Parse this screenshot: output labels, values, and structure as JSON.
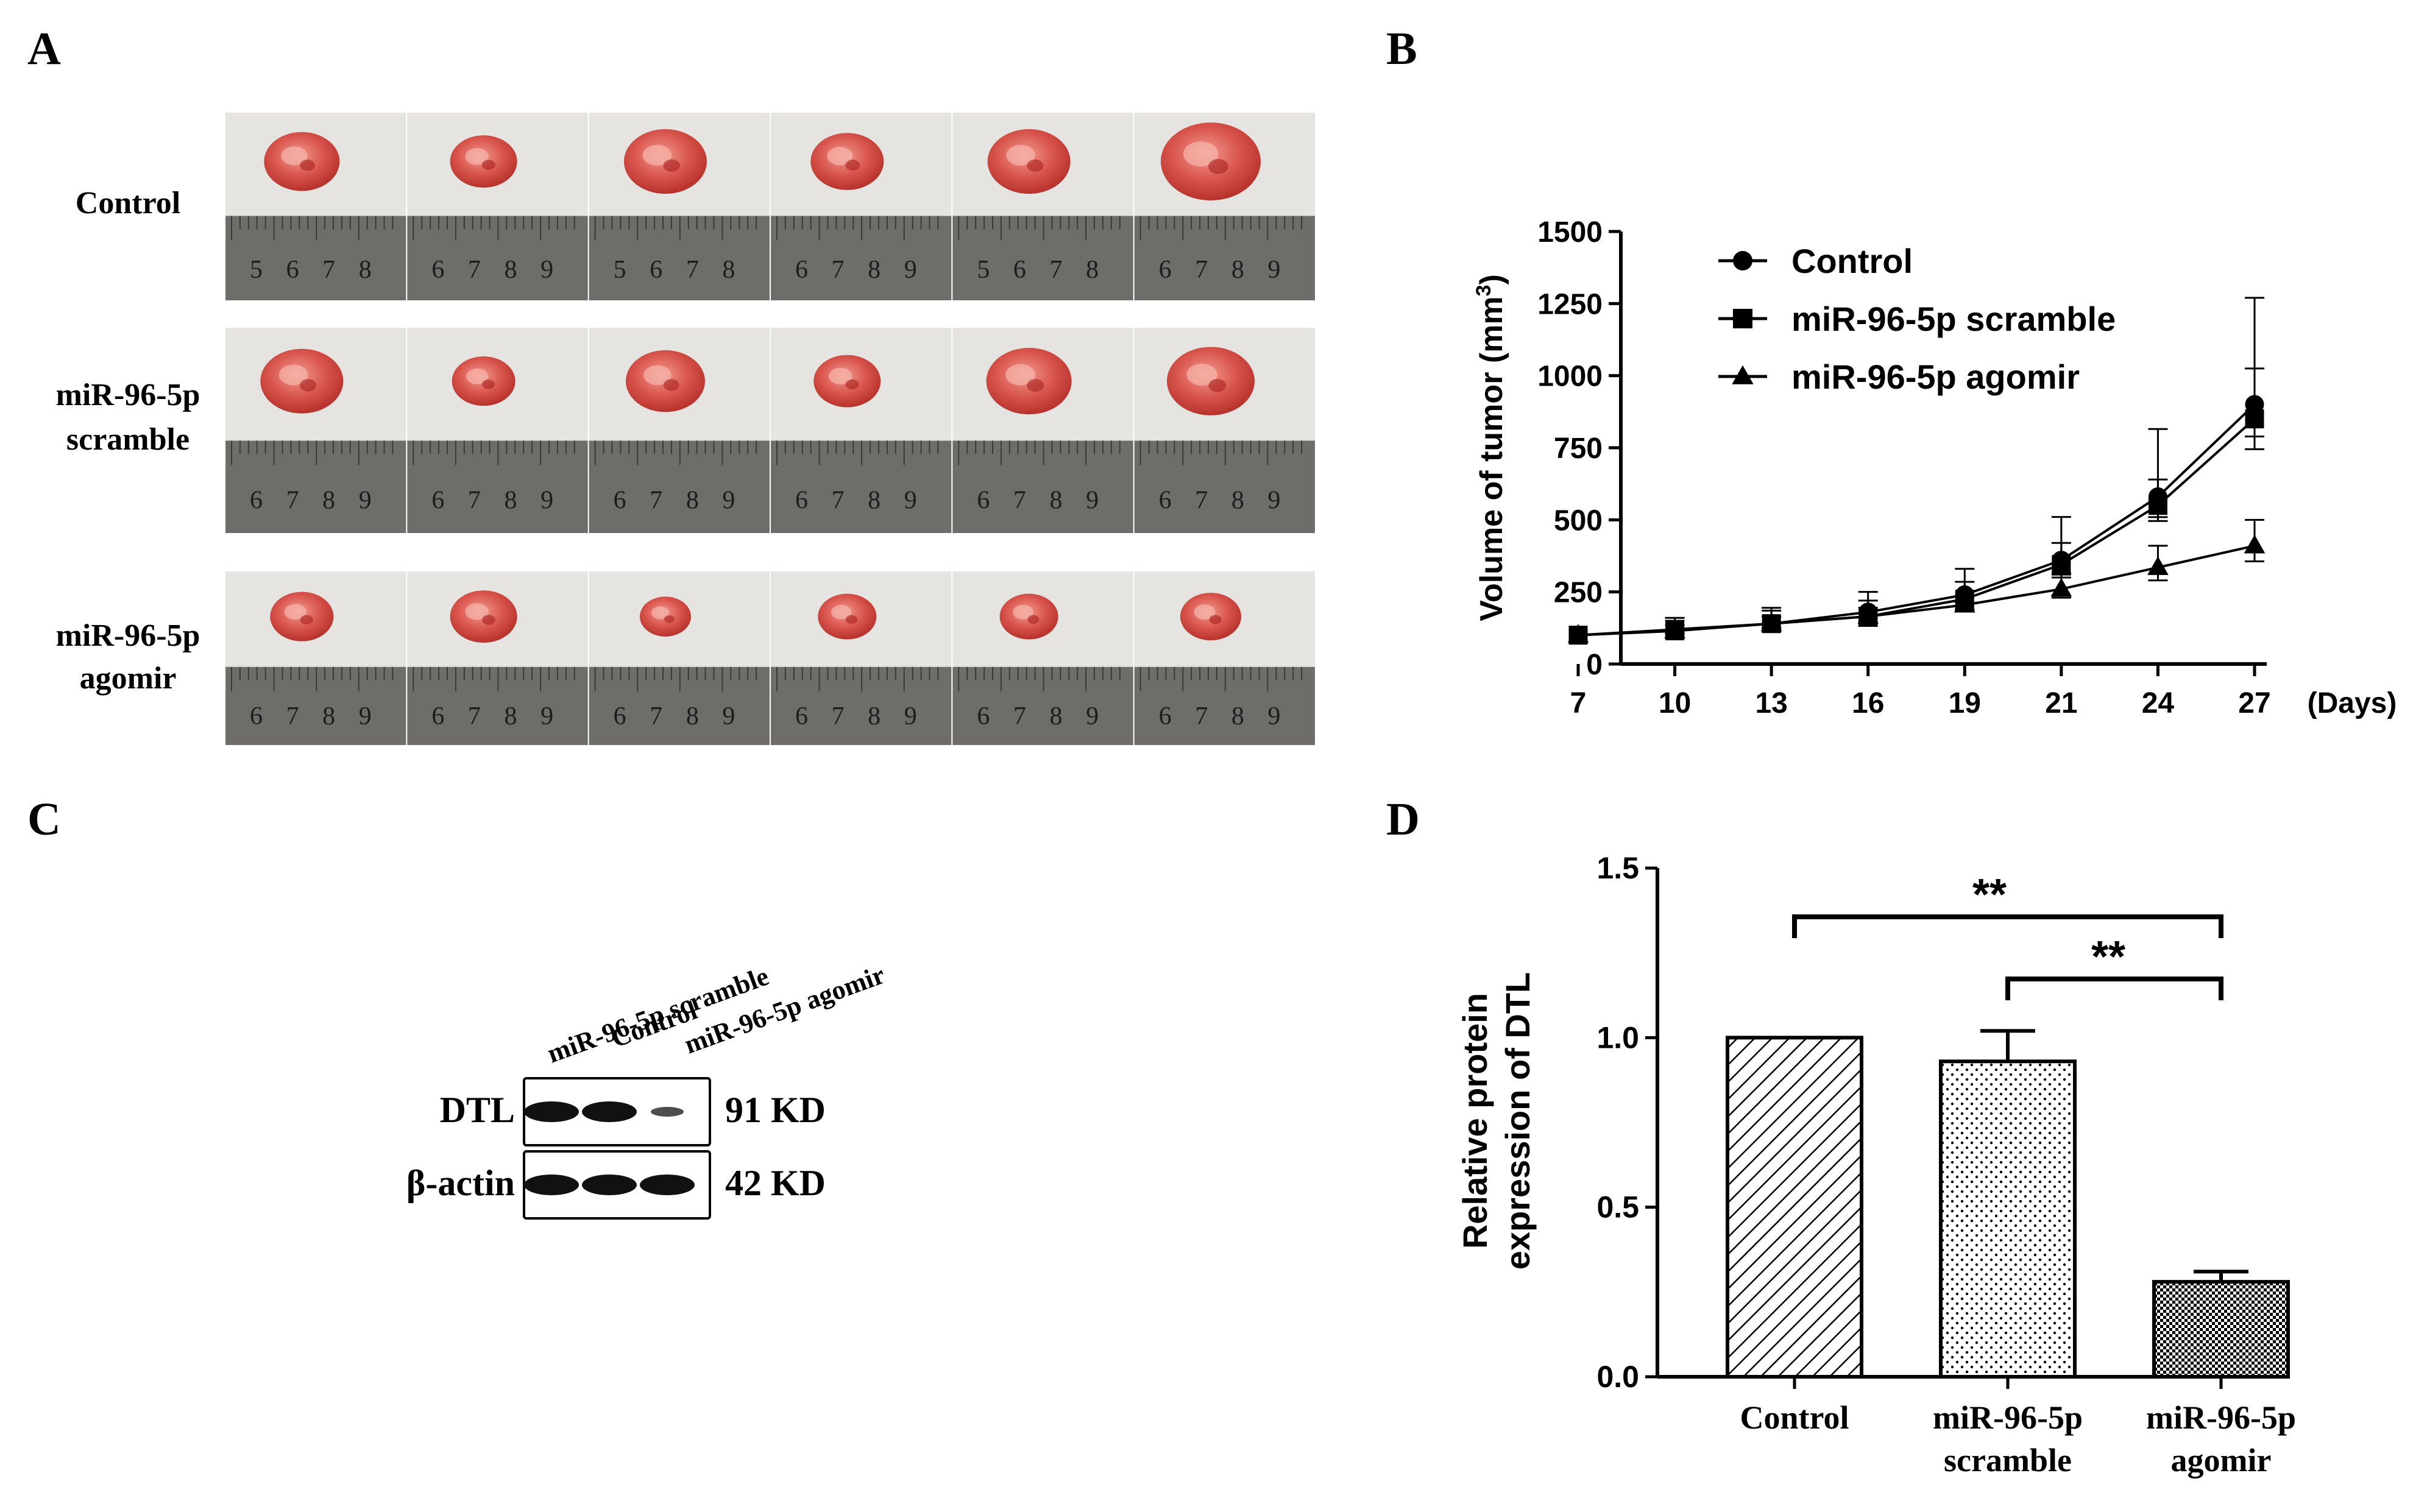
{
  "panels": {
    "a": {
      "letter": "A",
      "rows": [
        {
          "line1": "Control",
          "line2": "",
          "ruler_start": 5
        },
        {
          "line1": "miR-96-5p",
          "line2": "scramble",
          "ruler_start": 6
        },
        {
          "line1": "miR-96-5p",
          "line2": "agomir",
          "ruler_start": 6
        }
      ],
      "photos_per_row": 6
    },
    "b": {
      "letter": "B"
    },
    "c": {
      "letter": "C",
      "lanes": [
        "miR-96-5p scramble",
        "Control",
        "miR-96-5p agomir"
      ],
      "proteins": [
        {
          "name": "DTL",
          "size": "91 KD"
        },
        {
          "name": "β-actin",
          "size": "42 KD"
        }
      ]
    },
    "d": {
      "letter": "D"
    }
  },
  "colors": {
    "ink": "#000000",
    "tumor": "#d2554e",
    "tumor_dark": "#a8221f",
    "photo_bg": "#e6e4e1",
    "ruler": "#6e6d6a"
  },
  "chart_data": [
    {
      "id": "B",
      "type": "line",
      "ylabel": "Volume of tumor (mm",
      "ylabel_sup": "3",
      "ylabel_end": ")",
      "xunit": "(Days)",
      "categories": [
        "7",
        "10",
        "13",
        "16",
        "19",
        "21",
        "24",
        "27"
      ],
      "ylim": [
        0,
        1500
      ],
      "yticks": [
        0,
        250,
        500,
        750,
        1000,
        1250,
        1500
      ],
      "legend_position": "top-left",
      "series": [
        {
          "name": "Control",
          "marker": "circle",
          "values": [
            100,
            120,
            140,
            180,
            240,
            360,
            580,
            900
          ],
          "err": [
            0,
            40,
            55,
            70,
            90,
            150,
            235,
            370
          ]
        },
        {
          "name": "miR-96-5p scramble",
          "marker": "square",
          "values": [
            100,
            115,
            140,
            165,
            225,
            345,
            550,
            850
          ],
          "err": [
            0,
            35,
            45,
            55,
            60,
            75,
            90,
            175
          ]
        },
        {
          "name": "miR-96-5p agomir",
          "marker": "triangle",
          "values": [
            100,
            115,
            140,
            165,
            205,
            260,
            335,
            410
          ],
          "err": [
            0,
            20,
            25,
            30,
            30,
            50,
            75,
            90
          ]
        }
      ]
    },
    {
      "id": "D",
      "type": "bar",
      "ylabel_line1": "Relative protein",
      "ylabel_line2": "expression of DTL",
      "categories": [
        {
          "line1": "Control",
          "line2": ""
        },
        {
          "line1": "miR-96-5p",
          "line2": "scramble"
        },
        {
          "line1": "miR-96-5p",
          "line2": "agomir"
        }
      ],
      "values": [
        1.0,
        0.93,
        0.28
      ],
      "err": [
        0,
        0.09,
        0.03
      ],
      "patterns": [
        "diagonal",
        "dots",
        "checker"
      ],
      "ylim": [
        0,
        1.5
      ],
      "yticks": [
        "0.0",
        "0.5",
        "1.0",
        "1.5"
      ],
      "significance": [
        {
          "from": 0,
          "to": 2,
          "label": "**"
        },
        {
          "from": 1,
          "to": 2,
          "label": "**"
        }
      ]
    }
  ]
}
